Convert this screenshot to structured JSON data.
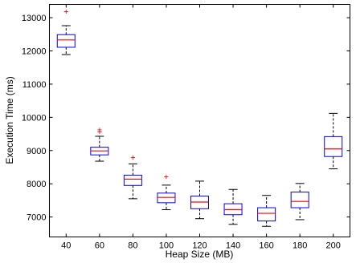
{
  "chart_data": {
    "type": "boxplot",
    "xlabel": "Heap Size (MB)",
    "ylabel": "Execution Time (ms)",
    "categories": [
      "40",
      "60",
      "80",
      "100",
      "120",
      "140",
      "160",
      "180",
      "200"
    ],
    "ylim": [
      6400,
      13400
    ],
    "yticks": [
      7000,
      8000,
      9000,
      10000,
      11000,
      12000,
      13000
    ],
    "colors": {
      "box": "#0000ff",
      "median": "#ff0000",
      "outlier": "#ff0000",
      "whisker": "#000000"
    },
    "grid": false,
    "legend": "none",
    "boxes": [
      {
        "category": "40",
        "whisker_low": 11890,
        "q1": 12110,
        "median": 12330,
        "q3": 12490,
        "whisker_high": 12760,
        "outliers": [
          13190
        ]
      },
      {
        "category": "60",
        "whisker_low": 8680,
        "q1": 8870,
        "median": 8990,
        "q3": 9100,
        "whisker_high": 9430,
        "outliers": [
          9580,
          9640
        ]
      },
      {
        "category": "80",
        "whisker_low": 7550,
        "q1": 7950,
        "median": 8140,
        "q3": 8260,
        "whisker_high": 8600,
        "outliers": [
          8800
        ]
      },
      {
        "category": "100",
        "whisker_low": 7220,
        "q1": 7430,
        "median": 7590,
        "q3": 7720,
        "whisker_high": 7960,
        "outliers": [
          8220
        ]
      },
      {
        "category": "120",
        "whisker_low": 6950,
        "q1": 7250,
        "median": 7450,
        "q3": 7630,
        "whisker_high": 8080,
        "outliers": []
      },
      {
        "category": "140",
        "whisker_low": 6780,
        "q1": 7070,
        "median": 7220,
        "q3": 7400,
        "whisker_high": 7830,
        "outliers": []
      },
      {
        "category": "160",
        "whisker_low": 6720,
        "q1": 6880,
        "median": 7110,
        "q3": 7280,
        "whisker_high": 7650,
        "outliers": []
      },
      {
        "category": "180",
        "whisker_low": 6920,
        "q1": 7280,
        "median": 7470,
        "q3": 7750,
        "whisker_high": 8010,
        "outliers": []
      },
      {
        "category": "200",
        "whisker_low": 8450,
        "q1": 8820,
        "median": 9050,
        "q3": 9420,
        "whisker_high": 10120,
        "outliers": []
      }
    ]
  }
}
